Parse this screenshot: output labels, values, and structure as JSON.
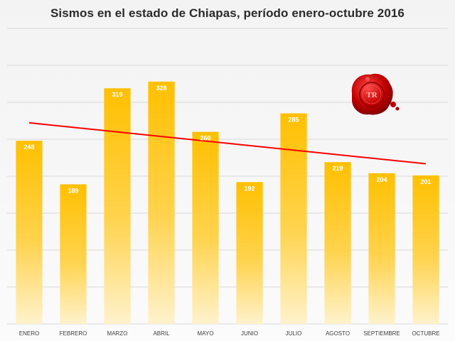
{
  "chart_data": {
    "type": "bar",
    "title": "Sismos en el estado de Chiapas, período enero-octubre 2016",
    "xlabel": "",
    "ylabel": "",
    "categories": [
      "ENERO",
      "FEBRERO",
      "MARZO",
      "ABRIL",
      "MAYO",
      "JUNIO",
      "JULIO",
      "AGOSTO",
      "SEPTIEMBRE",
      "OCTUBRE"
    ],
    "values": [
      248,
      189,
      319,
      328,
      260,
      192,
      285,
      219,
      204,
      201
    ],
    "ylim": [
      0,
      400
    ],
    "grid": true,
    "legend": "none",
    "trendline": {
      "type": "linear",
      "color": "#ff0000"
    },
    "colors": {
      "bar_top": "#ffc000",
      "bar_bottom": "#fff2cc",
      "grid": "#d9d9d9",
      "trend": "#ff0000",
      "seal": "#c00000"
    }
  },
  "watermark": {
    "icon": "wax-seal-icon",
    "text": "TR"
  }
}
